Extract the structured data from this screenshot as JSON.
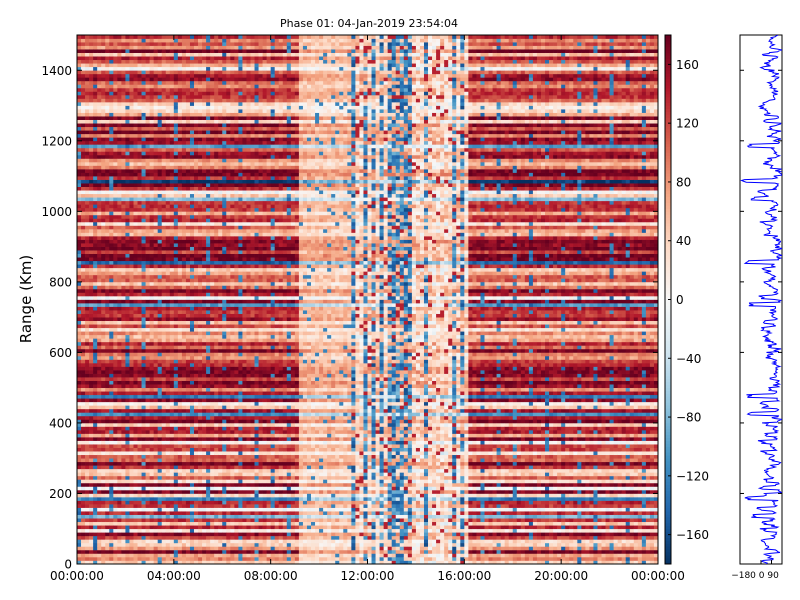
{
  "chart_data": {
    "type": "heatmap",
    "title": "Phase 01: 04-Jan-2019 23:54:04",
    "ylabel": "Range (Km)",
    "xlabel": "",
    "x_ticks": [
      "00:00:00",
      "04:00:00",
      "08:00:00",
      "12:00:00",
      "16:00:00",
      "20:00:00",
      "00:00:00"
    ],
    "x_range_hours": [
      0,
      24
    ],
    "y_ticks": [
      0,
      200,
      400,
      600,
      800,
      1000,
      1200,
      1400
    ],
    "ylim": [
      0,
      1500
    ],
    "colorbar": {
      "ticks": [
        160,
        120,
        80,
        40,
        0,
        -40,
        -80,
        -120,
        -160
      ],
      "range": [
        -180,
        180
      ],
      "colormap": "RdBu_r"
    },
    "grid": false,
    "legend": "none",
    "time_segments_hours": [
      {
        "start": 0,
        "end": 9.2,
        "character": "strong red banded, periodic stripes"
      },
      {
        "start": 9.2,
        "end": 11.3,
        "character": "pale pink, weak"
      },
      {
        "start": 11.3,
        "end": 16.1,
        "character": "mixed, frequent blue columns"
      },
      {
        "start": 16.1,
        "end": 24,
        "character": "strong red banded"
      }
    ],
    "side_panel": {
      "type": "line",
      "x_ticks_label": "−180 0 90",
      "xlim": [
        -180,
        180
      ],
      "ylim": [
        0,
        1500
      ],
      "line_color": "#0000ff",
      "description": "phase profile vs range"
    }
  }
}
